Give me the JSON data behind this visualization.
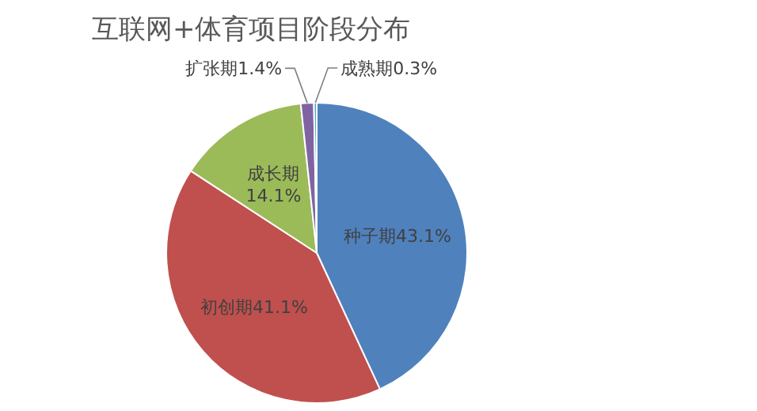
{
  "chart_data": {
    "type": "pie",
    "title": "互联网+体育项目阶段分布",
    "categories": [
      "种子期",
      "初创期",
      "成长期",
      "扩张期",
      "成熟期"
    ],
    "values": [
      43.1,
      41.1,
      14.1,
      1.4,
      0.3
    ],
    "value_labels": [
      "43.1%",
      "41.1%",
      "14.1%",
      "1.4%",
      "0.3%"
    ],
    "colors": [
      "#4f81bd",
      "#c0504d",
      "#9bbb59",
      "#8064a2",
      "#4bacc6"
    ]
  }
}
